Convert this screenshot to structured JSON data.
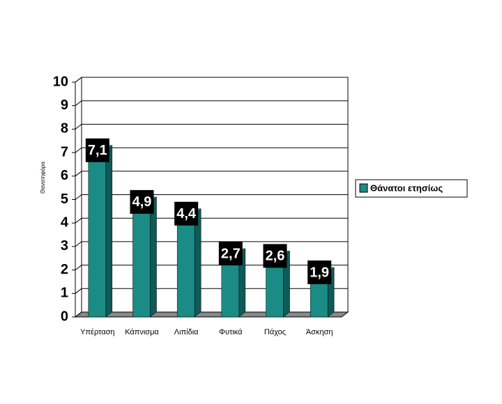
{
  "chart_data": {
    "type": "bar",
    "y_label": "Θανατηφόρα",
    "categories": [
      "Υπέρταση",
      "Κάπνισμα",
      "Λιπίδια",
      "Φυτικά",
      "Πάχος",
      "Άσκηση"
    ],
    "series": [
      {
        "name": "Θάνατοι ετησίως",
        "color": "#1b8b86",
        "values": [
          7.1,
          4.9,
          4.4,
          2.7,
          2.6,
          1.9
        ],
        "value_labels": [
          "7,1",
          "4,9",
          "4,4",
          "2,7",
          "2,6",
          "1,9"
        ]
      }
    ],
    "ylim": [
      0,
      10
    ],
    "yticks": [
      0,
      1,
      2,
      3,
      4,
      5,
      6,
      7,
      8,
      9,
      10
    ],
    "grid": true,
    "legend": "right"
  }
}
